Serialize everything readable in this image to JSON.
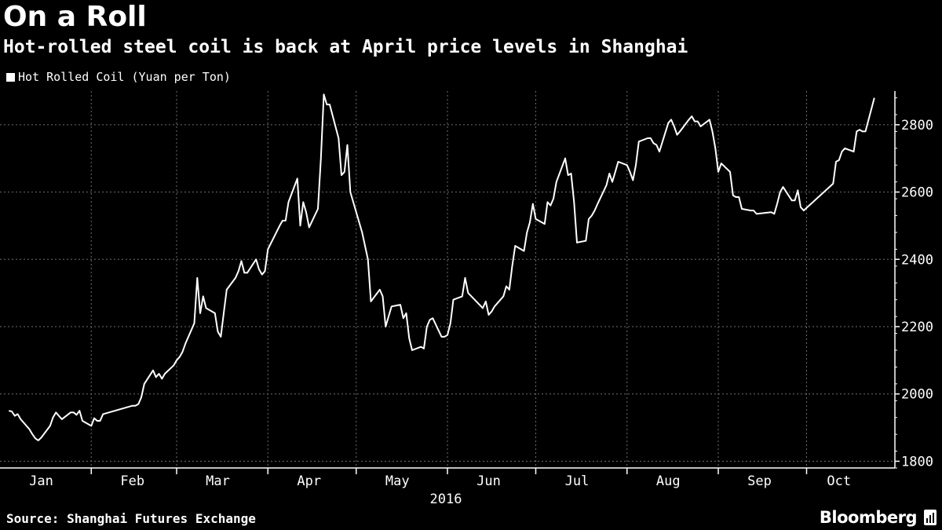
{
  "header": {
    "title": "On a Roll",
    "subtitle": "Hot-rolled steel coil is back at April price levels in Shanghai"
  },
  "footer": {
    "source": "Source: Shanghai Futures Exchange",
    "brand": "Bloomberg"
  },
  "colors": {
    "background": "#000000",
    "line": "#ffffff",
    "grid": "#6e6e6e"
  },
  "chart_data": {
    "type": "line",
    "legend": "top-left",
    "grid": true,
    "x_axis_label": "2016",
    "x_categories": [
      "Jan",
      "Feb",
      "Mar",
      "Apr",
      "May",
      "Jun",
      "Jul",
      "Aug",
      "Sep",
      "Oct"
    ],
    "ylim": [
      1780,
      2900
    ],
    "y_ticks": [
      1800,
      2000,
      2200,
      2400,
      2600,
      2800
    ],
    "series": [
      {
        "name": "Hot Rolled Coil (Yuan per Ton)",
        "color": "#ffffff",
        "x": [
          "2016-01-04",
          "2016-01-05",
          "2016-01-06",
          "2016-01-07",
          "2016-01-08",
          "2016-01-11",
          "2016-01-12",
          "2016-01-13",
          "2016-01-14",
          "2016-01-15",
          "2016-01-18",
          "2016-01-19",
          "2016-01-20",
          "2016-01-21",
          "2016-01-22",
          "2016-01-25",
          "2016-01-26",
          "2016-01-27",
          "2016-01-28",
          "2016-01-29",
          "2016-02-01",
          "2016-02-02",
          "2016-02-03",
          "2016-02-04",
          "2016-02-05",
          "2016-02-15",
          "2016-02-16",
          "2016-02-17",
          "2016-02-18",
          "2016-02-19",
          "2016-02-22",
          "2016-02-23",
          "2016-02-24",
          "2016-02-25",
          "2016-02-26",
          "2016-02-29",
          "2016-03-01",
          "2016-03-02",
          "2016-03-03",
          "2016-03-04",
          "2016-03-07",
          "2016-03-08",
          "2016-03-09",
          "2016-03-10",
          "2016-03-11",
          "2016-03-14",
          "2016-03-15",
          "2016-03-16",
          "2016-03-17",
          "2016-03-18",
          "2016-03-21",
          "2016-03-22",
          "2016-03-23",
          "2016-03-24",
          "2016-03-25",
          "2016-03-28",
          "2016-03-29",
          "2016-03-30",
          "2016-03-31",
          "2016-04-01",
          "2016-04-05",
          "2016-04-06",
          "2016-04-07",
          "2016-04-08",
          "2016-04-11",
          "2016-04-12",
          "2016-04-13",
          "2016-04-14",
          "2016-04-15",
          "2016-04-18",
          "2016-04-19",
          "2016-04-20",
          "2016-04-21",
          "2016-04-22",
          "2016-04-25",
          "2016-04-26",
          "2016-04-27",
          "2016-04-28",
          "2016-04-29",
          "2016-05-03",
          "2016-05-04",
          "2016-05-05",
          "2016-05-06",
          "2016-05-09",
          "2016-05-10",
          "2016-05-11",
          "2016-05-12",
          "2016-05-13",
          "2016-05-16",
          "2016-05-17",
          "2016-05-18",
          "2016-05-19",
          "2016-05-20",
          "2016-05-23",
          "2016-05-24",
          "2016-05-25",
          "2016-05-26",
          "2016-05-27",
          "2016-05-30",
          "2016-05-31",
          "2016-06-01",
          "2016-06-02",
          "2016-06-03",
          "2016-06-06",
          "2016-06-07",
          "2016-06-08",
          "2016-06-13",
          "2016-06-14",
          "2016-06-15",
          "2016-06-16",
          "2016-06-17",
          "2016-06-20",
          "2016-06-21",
          "2016-06-22",
          "2016-06-23",
          "2016-06-24",
          "2016-06-27",
          "2016-06-28",
          "2016-06-29",
          "2016-06-30",
          "2016-07-01",
          "2016-07-04",
          "2016-07-05",
          "2016-07-06",
          "2016-07-07",
          "2016-07-08",
          "2016-07-11",
          "2016-07-12",
          "2016-07-13",
          "2016-07-14",
          "2016-07-15",
          "2016-07-18",
          "2016-07-19",
          "2016-07-20",
          "2016-07-21",
          "2016-07-22",
          "2016-07-25",
          "2016-07-26",
          "2016-07-27",
          "2016-07-28",
          "2016-07-29",
          "2016-08-01",
          "2016-08-02",
          "2016-08-03",
          "2016-08-04",
          "2016-08-05",
          "2016-08-08",
          "2016-08-09",
          "2016-08-10",
          "2016-08-11",
          "2016-08-12",
          "2016-08-15",
          "2016-08-16",
          "2016-08-17",
          "2016-08-18",
          "2016-08-19",
          "2016-08-22",
          "2016-08-23",
          "2016-08-24",
          "2016-08-25",
          "2016-08-26",
          "2016-08-29",
          "2016-08-30",
          "2016-08-31",
          "2016-09-01",
          "2016-09-02",
          "2016-09-05",
          "2016-09-06",
          "2016-09-07",
          "2016-09-08",
          "2016-09-09",
          "2016-09-12",
          "2016-09-13",
          "2016-09-14",
          "2016-09-19",
          "2016-09-20",
          "2016-09-21",
          "2016-09-22",
          "2016-09-23",
          "2016-09-26",
          "2016-09-27",
          "2016-09-28",
          "2016-09-29",
          "2016-09-30",
          "2016-10-10",
          "2016-10-11",
          "2016-10-12",
          "2016-10-13",
          "2016-10-14",
          "2016-10-17",
          "2016-10-18",
          "2016-10-19",
          "2016-10-20",
          "2016-10-21",
          "2016-10-24"
        ],
        "values": [
          1950,
          1948,
          1935,
          1940,
          1925,
          1895,
          1880,
          1868,
          1862,
          1870,
          1905,
          1930,
          1945,
          1935,
          1925,
          1945,
          1945,
          1938,
          1950,
          1920,
          1905,
          1928,
          1920,
          1920,
          1940,
          1965,
          1965,
          1970,
          1990,
          2030,
          2070,
          2050,
          2060,
          2045,
          2060,
          2085,
          2100,
          2110,
          2125,
          2150,
          2210,
          2345,
          2240,
          2290,
          2255,
          2240,
          2185,
          2170,
          2240,
          2310,
          2345,
          2365,
          2395,
          2360,
          2360,
          2400,
          2370,
          2355,
          2365,
          2430,
          2500,
          2515,
          2515,
          2570,
          2640,
          2500,
          2570,
          2540,
          2495,
          2550,
          2700,
          2890,
          2860,
          2860,
          2760,
          2650,
          2660,
          2740,
          2600,
          2480,
          2440,
          2400,
          2275,
          2310,
          2290,
          2200,
          2230,
          2260,
          2265,
          2225,
          2240,
          2165,
          2130,
          2140,
          2135,
          2200,
          2220,
          2225,
          2170,
          2170,
          2175,
          2210,
          2280,
          2290,
          2345,
          2300,
          2255,
          2275,
          2235,
          2245,
          2260,
          2290,
          2320,
          2310,
          2380,
          2440,
          2425,
          2480,
          2510,
          2565,
          2520,
          2505,
          2570,
          2560,
          2580,
          2630,
          2700,
          2650,
          2655,
          2570,
          2450,
          2455,
          2520,
          2530,
          2545,
          2565,
          2620,
          2655,
          2630,
          2660,
          2690,
          2680,
          2660,
          2635,
          2680,
          2750,
          2760,
          2760,
          2745,
          2740,
          2720,
          2805,
          2815,
          2795,
          2770,
          2780,
          2815,
          2825,
          2810,
          2810,
          2795,
          2815,
          2780,
          2730,
          2660,
          2685,
          2660,
          2590,
          2585,
          2585,
          2550,
          2545,
          2545,
          2535,
          2540,
          2535,
          2565,
          2600,
          2615,
          2575,
          2575,
          2605,
          2555,
          2545,
          2625,
          2690,
          2695,
          2720,
          2730,
          2720,
          2780,
          2785,
          2780,
          2780,
          2880
        ]
      }
    ]
  }
}
